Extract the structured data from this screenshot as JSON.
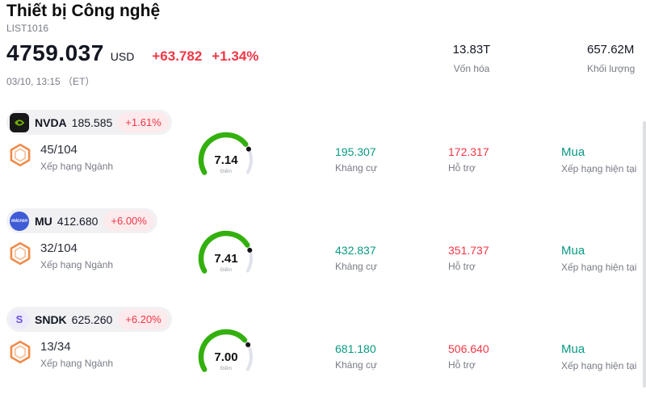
{
  "colors": {
    "accent_red": "#f23645",
    "accent_teal": "#089981",
    "gauge_green": "#33b00e",
    "gauge_track": "#e0e3eb",
    "hex_orange": "#ef8a48"
  },
  "header": {
    "title": "Thiết bị Công nghệ",
    "list_id": "LIST1016",
    "price": "4759.037",
    "currency": "USD",
    "change": "+63.782",
    "change_pct": "+1.34%",
    "datetime": "03/10, 13:15 （ET）",
    "stats": [
      {
        "value": "13.83T",
        "label": "Vốn hóa"
      },
      {
        "value": "657.62M",
        "label": "Khối lượng"
      }
    ]
  },
  "labels": {
    "rank": "Xếp hạng Ngành",
    "score": "Điểm",
    "resistance": "Kháng cự",
    "support": "Hỗ trợ",
    "current_rating": "Xếp hạng hiện tại"
  },
  "stocks": [
    {
      "ticker": "NVDA",
      "logo": "nvidia-logo",
      "logo_text": "",
      "price": "185.585",
      "change": "+1.61%",
      "rank": "45/104",
      "score": "7.14",
      "score_value": 7.14,
      "resistance": "195.307",
      "support": "172.317",
      "rating": "Mua"
    },
    {
      "ticker": "MU",
      "logo": "micron-logo",
      "logo_text": "micron",
      "price": "412.680",
      "change": "+6.00%",
      "rank": "32/104",
      "score": "7.41",
      "score_value": 7.41,
      "resistance": "432.837",
      "support": "351.737",
      "rating": "Mua"
    },
    {
      "ticker": "SNDK",
      "logo": "sandisk-logo",
      "logo_text": "S",
      "price": "625.260",
      "change": "+6.20%",
      "rank": "13/34",
      "score": "7.00",
      "score_value": 7.0,
      "resistance": "681.180",
      "support": "506.640",
      "rating": "Mua"
    }
  ]
}
